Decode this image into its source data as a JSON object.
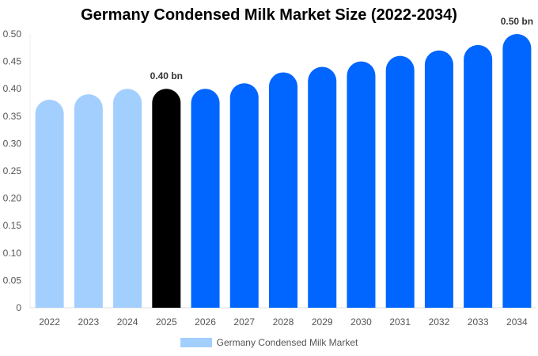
{
  "chart_data": {
    "type": "bar",
    "title": "Germany Condensed Milk Market Size (2022-2034)",
    "categories": [
      "2022",
      "2023",
      "2024",
      "2025",
      "2026",
      "2027",
      "2028",
      "2029",
      "2030",
      "2031",
      "2032",
      "2033",
      "2034"
    ],
    "series": [
      {
        "name": "Germany Condensed Milk Market",
        "values": [
          0.38,
          0.39,
          0.4,
          0.4,
          0.4,
          0.41,
          0.43,
          0.44,
          0.45,
          0.46,
          0.47,
          0.48,
          0.5
        ]
      }
    ],
    "ylim": [
      0,
      0.5
    ],
    "yticks": [
      "0",
      "0.05",
      "0.10",
      "0.15",
      "0.20",
      "0.25",
      "0.30",
      "0.35",
      "0.40",
      "0.45",
      "0.50"
    ],
    "data_labels": [
      {
        "category": "2025",
        "text": "0.40 bn"
      },
      {
        "category": "2034",
        "text": "0.50 bn"
      }
    ],
    "colors": {
      "historical": "#a3cfff",
      "current": "#000000",
      "forecast": "#0066ff"
    },
    "grid": false,
    "legend": "bottom"
  }
}
